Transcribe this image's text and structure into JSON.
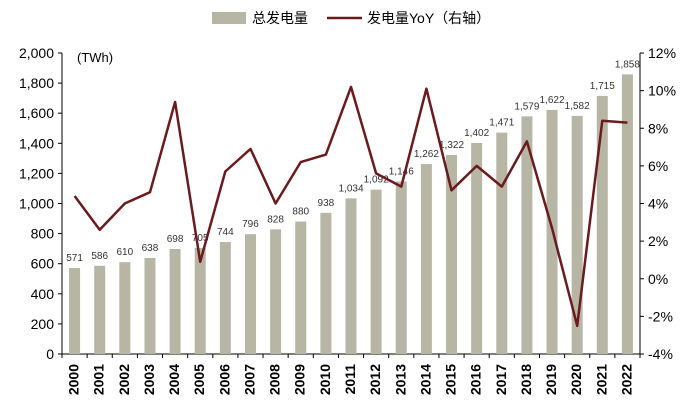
{
  "chart_data": {
    "type": "bar",
    "categories": [
      "2000",
      "2001",
      "2002",
      "2003",
      "2004",
      "2005",
      "2006",
      "2007",
      "2008",
      "2009",
      "2010",
      "2011",
      "2012",
      "2013",
      "2014",
      "2015",
      "2016",
      "2017",
      "2018",
      "2019",
      "2020",
      "2021",
      "2022"
    ],
    "unit_label": "(TWh)",
    "series": [
      {
        "name": "总发电量",
        "type": "bar",
        "axis": "left",
        "color": "#b7b6a4",
        "values": [
          571,
          586,
          610,
          638,
          698,
          705,
          744,
          796,
          828,
          880,
          938,
          1034,
          1092,
          1146,
          1262,
          1322,
          1402,
          1471,
          1579,
          1622,
          1582,
          1715,
          1858
        ],
        "labels": [
          "571",
          "586",
          "610",
          "638",
          "698",
          "705",
          "744",
          "796",
          "828",
          "880",
          "938",
          "1,034",
          "1,092",
          "1,146",
          "1,262",
          "1,322",
          "1,402",
          "1,471",
          "1,579",
          "1,622",
          "1,582",
          "1,715",
          "1,858"
        ]
      },
      {
        "name": "发电量YoY（右轴）",
        "type": "line",
        "axis": "right",
        "color": "#6b1a1e",
        "values": [
          4.4,
          2.6,
          4.0,
          4.6,
          9.4,
          0.9,
          5.7,
          6.9,
          4.0,
          6.2,
          6.6,
          10.2,
          5.6,
          4.9,
          10.1,
          4.7,
          6.0,
          4.9,
          7.3,
          2.7,
          -2.5,
          8.4,
          8.3
        ]
      }
    ],
    "y_left": {
      "min": 0,
      "max": 2000,
      "ticks": [
        0,
        200,
        400,
        600,
        800,
        1000,
        1200,
        1400,
        1600,
        1800,
        2000
      ],
      "tick_labels": [
        "0",
        "200",
        "400",
        "600",
        "800",
        "1,000",
        "1,200",
        "1,400",
        "1,600",
        "1,800",
        "2,000"
      ]
    },
    "y_right": {
      "min": -4,
      "max": 12,
      "ticks": [
        -4,
        -2,
        0,
        2,
        4,
        6,
        8,
        10,
        12
      ],
      "tick_labels": [
        "-4%",
        "-2%",
        "0%",
        "2%",
        "4%",
        "6%",
        "8%",
        "10%",
        "12%"
      ]
    },
    "legend": {
      "position": "top",
      "items": [
        "总发电量",
        "发电量YoY（右轴）"
      ]
    },
    "grid": false
  }
}
